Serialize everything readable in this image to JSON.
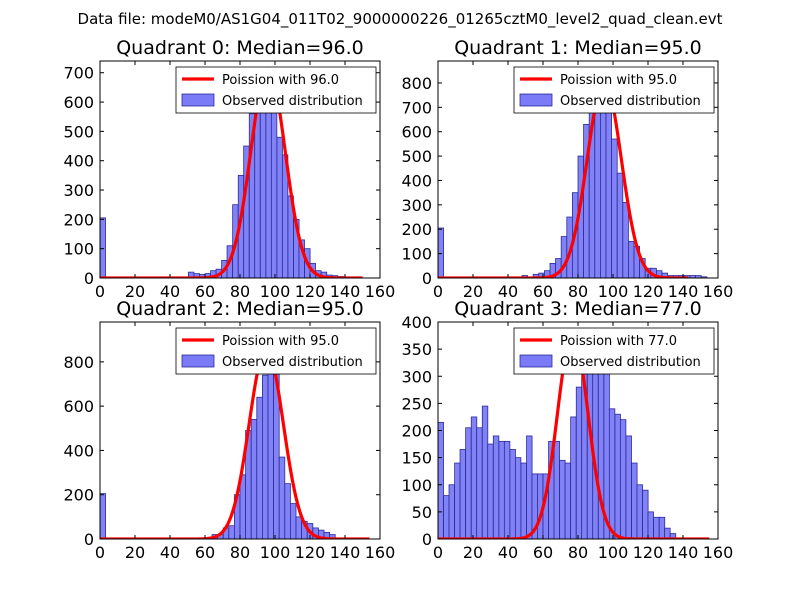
{
  "suptitle": "Data file: modeM0/AS1G04_011T02_9000000226_01265cztM0_level2_quad_clean.evt",
  "colors": {
    "bars": "#7b7bf7",
    "bar_edge": "#2b2b9a",
    "poisson": "#ff0000"
  },
  "chart_data": [
    {
      "type": "bar",
      "title": "Quadrant 0: Median=96.0",
      "median": 96.0,
      "xlim": [
        0,
        160
      ],
      "ylim": [
        0,
        740
      ],
      "xticks": [
        0,
        20,
        40,
        60,
        80,
        100,
        120,
        140,
        160
      ],
      "yticks": [
        0,
        100,
        200,
        300,
        400,
        500,
        600,
        700
      ],
      "bin_width": 3.16,
      "bins_start": [
        0,
        50.5,
        53.7,
        56.8,
        60,
        63.2,
        66.3,
        69.5,
        72.6,
        75.8,
        79,
        82.1,
        85.3,
        88.4,
        91.6,
        94.8,
        97.9,
        101.1,
        104.2,
        107.4,
        110.6,
        113.7,
        116.9,
        120,
        123.2,
        126.4,
        129.5,
        132.7,
        135.8
      ],
      "counts": [
        205,
        20,
        15,
        12,
        15,
        25,
        30,
        60,
        110,
        250,
        350,
        450,
        560,
        580,
        650,
        660,
        570,
        480,
        420,
        280,
        200,
        130,
        100,
        50,
        25,
        20,
        10,
        8,
        5
      ],
      "poisson_label": "Poission with 96.0",
      "poisson_peak": 715,
      "poisson_xmax": 150,
      "legend": [
        "Poission with 96.0",
        "Observed distribution"
      ]
    },
    {
      "type": "bar",
      "title": "Quadrant 1: Median=95.0",
      "median": 95.0,
      "xlim": [
        0,
        160
      ],
      "ylim": [
        0,
        890
      ],
      "xticks": [
        0,
        20,
        40,
        60,
        80,
        100,
        120,
        140,
        160
      ],
      "yticks": [
        0,
        100,
        200,
        300,
        400,
        500,
        600,
        700,
        800
      ],
      "bin_width": 3.2,
      "bins_start": [
        0,
        48,
        54.4,
        57.6,
        60.8,
        64,
        67.2,
        70.4,
        73.6,
        76.8,
        80,
        83.2,
        86.4,
        89.6,
        92.8,
        96,
        99.2,
        102.4,
        105.6,
        108.8,
        112,
        115.2,
        118.4,
        121.6,
        124.8,
        128,
        131.2,
        134.4,
        137.6,
        140.8,
        144,
        147.2,
        150.4
      ],
      "counts": [
        205,
        10,
        15,
        20,
        30,
        60,
        80,
        170,
        250,
        350,
        500,
        630,
        680,
        790,
        850,
        700,
        570,
        430,
        310,
        150,
        130,
        80,
        40,
        40,
        30,
        20,
        10,
        10,
        10,
        10,
        10,
        10,
        5
      ],
      "poisson_label": "Poission with 95.0",
      "poisson_peak": 805,
      "poisson_xmax": 143,
      "legend": [
        "Poission with 95.0",
        "Observed distribution"
      ]
    },
    {
      "type": "bar",
      "title": "Quadrant 2: Median=95.0",
      "median": 95.0,
      "xlim": [
        0,
        160
      ],
      "ylim": [
        0,
        980
      ],
      "xticks": [
        0,
        20,
        40,
        60,
        80,
        100,
        120,
        140,
        160
      ],
      "yticks": [
        0,
        200,
        400,
        600,
        800
      ],
      "bin_width": 3.2,
      "bins_start": [
        0,
        64,
        67.2,
        70.4,
        73.6,
        76.8,
        80,
        83.2,
        86.4,
        89.6,
        92.8,
        96,
        99.2,
        102.4,
        105.6,
        108.8,
        112,
        115.2,
        118.4,
        121.6,
        124.8,
        128,
        131.2
      ],
      "counts": [
        205,
        20,
        20,
        50,
        60,
        200,
        290,
        490,
        540,
        640,
        740,
        920,
        850,
        370,
        250,
        160,
        100,
        80,
        70,
        50,
        40,
        30,
        20
      ],
      "poisson_label": "Poission with 95.0",
      "poisson_peak": 860,
      "poisson_xmax": 154,
      "legend": [
        "Poission with 95.0",
        "Observed distribution"
      ]
    },
    {
      "type": "bar",
      "title": "Quadrant 3: Median=77.0",
      "median": 77.0,
      "xlim": [
        0,
        160
      ],
      "ylim": [
        0,
        400
      ],
      "xticks": [
        0,
        20,
        40,
        60,
        80,
        100,
        120,
        140,
        160
      ],
      "yticks": [
        0,
        50,
        100,
        150,
        200,
        250,
        300,
        350,
        400
      ],
      "bin_width": 3.16,
      "bins_start": [
        0,
        3.2,
        6.3,
        9.5,
        12.6,
        15.8,
        19,
        22.1,
        25.3,
        28.4,
        31.6,
        34.8,
        37.9,
        41.1,
        44.2,
        47.4,
        50.6,
        53.7,
        56.8,
        60,
        63.2,
        66.3,
        69.5,
        72.6,
        75.8,
        79,
        82.1,
        85.3,
        88.4,
        91.6,
        94.8,
        97.9,
        101.1,
        104.2,
        107.4,
        110.6,
        113.7,
        116.9,
        120,
        123.2,
        126.4,
        129.5,
        132.7
      ],
      "counts": [
        215,
        80,
        100,
        140,
        165,
        205,
        225,
        205,
        245,
        175,
        190,
        180,
        180,
        165,
        150,
        140,
        190,
        120,
        120,
        120,
        180,
        180,
        145,
        140,
        225,
        280,
        335,
        370,
        340,
        350,
        330,
        240,
        230,
        220,
        190,
        140,
        100,
        90,
        50,
        40,
        40,
        20,
        10
      ],
      "poisson_label": "Poission with 77.0",
      "poisson_peak": 380,
      "poisson_xmax": 155,
      "legend": [
        "Poission with 77.0",
        "Observed distribution"
      ]
    }
  ]
}
